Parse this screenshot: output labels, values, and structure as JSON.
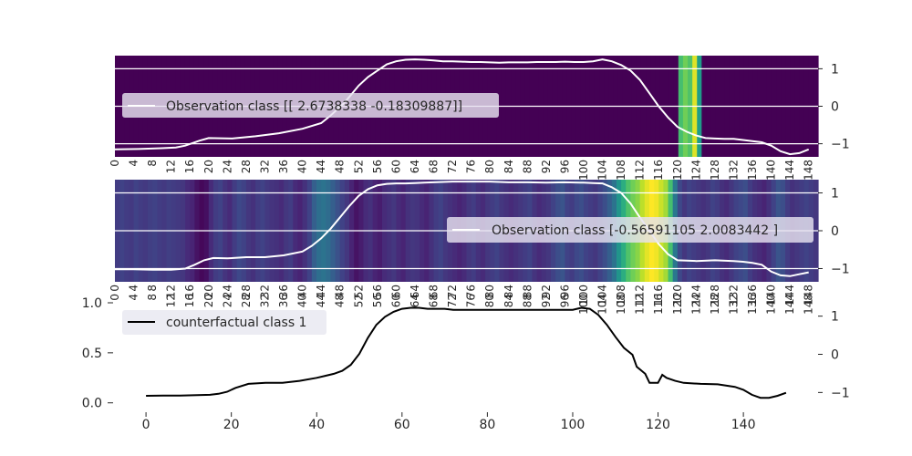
{
  "chart_data": [
    {
      "type": "heatmap",
      "title": "",
      "legend": "Observation class [[ 2.6738338  -0.18309887]]",
      "legend_position": "center-left",
      "x_range": [
        0,
        150
      ],
      "y_tick_labels": [
        "1",
        "0",
        "−1"
      ],
      "y_tick_values": [
        1,
        0,
        -1
      ],
      "ylim": [
        -1.35,
        1.35
      ],
      "x_tick_labels": [
        "0",
        "4",
        "8",
        "12",
        "16",
        "20",
        "24",
        "28",
        "32",
        "36",
        "40",
        "44",
        "48",
        "52",
        "56",
        "60",
        "64",
        "68",
        "72",
        "76",
        "80",
        "84",
        "88",
        "92",
        "96",
        "100",
        "104",
        "108",
        "112",
        "116",
        "120",
        "124",
        "128",
        "132",
        "136",
        "140",
        "144",
        "148"
      ],
      "heat_values": [
        0,
        0,
        0,
        0,
        0,
        0,
        0,
        0,
        0,
        0,
        0,
        0,
        0,
        0,
        0,
        0,
        0,
        0,
        0,
        0,
        0,
        0,
        0,
        0,
        0,
        0,
        0,
        0,
        0,
        0,
        0,
        0,
        0,
        0,
        0,
        0,
        0,
        0,
        0,
        0,
        0,
        0,
        0,
        0,
        0,
        0,
        0,
        0,
        0,
        0,
        0,
        0,
        0,
        0,
        0,
        0,
        0,
        0,
        0,
        0,
        0,
        0,
        0,
        0,
        0,
        0,
        0,
        0,
        0,
        0,
        0,
        0,
        0,
        0,
        0,
        0,
        0,
        0,
        0,
        0,
        0,
        0,
        0,
        0,
        0,
        0,
        0,
        0,
        0,
        0,
        0,
        0,
        0,
        0,
        0,
        0,
        0,
        0,
        0,
        0,
        0,
        0,
        0,
        0,
        0,
        0,
        0,
        0,
        0,
        0,
        0,
        0,
        0,
        0,
        0,
        0,
        0,
        0,
        0,
        0,
        0,
        0.7,
        0.78,
        0.72,
        0.95,
        0.55,
        0,
        0,
        0,
        0,
        0,
        0,
        0,
        0,
        0,
        0,
        0,
        0,
        0,
        0,
        0,
        0,
        0,
        0,
        0,
        0,
        0,
        0,
        0,
        0,
        0
      ],
      "line_series_ref": "series_obs1"
    },
    {
      "type": "heatmap",
      "title": "",
      "legend": "Observation class [-0.56591105  2.0083442 ]",
      "legend_position": "center-right",
      "x_range": [
        0,
        150
      ],
      "y_tick_labels": [
        "1",
        "0",
        "−1"
      ],
      "y_tick_values": [
        1,
        0,
        -1
      ],
      "ylim": [
        -1.35,
        1.35
      ],
      "x_tick_labels": [
        "0",
        "4",
        "8",
        "12",
        "16",
        "20",
        "24",
        "28",
        "32",
        "36",
        "40",
        "44",
        "48",
        "52",
        "56",
        "60",
        "64",
        "68",
        "72",
        "76",
        "80",
        "84",
        "88",
        "92",
        "96",
        "100",
        "104",
        "108",
        "112",
        "116",
        "120",
        "124",
        "128",
        "132",
        "136",
        "140",
        "144",
        "148"
      ],
      "heat_values": [
        0.18,
        0.2,
        0.18,
        0.17,
        0.2,
        0.18,
        0.17,
        0.19,
        0.2,
        0.18,
        0.17,
        0.19,
        0.18,
        0.17,
        0.16,
        0.12,
        0.1,
        0.05,
        0.02,
        0.04,
        0.12,
        0.18,
        0.2,
        0.15,
        0.12,
        0.18,
        0.22,
        0.2,
        0.16,
        0.14,
        0.18,
        0.2,
        0.17,
        0.15,
        0.14,
        0.12,
        0.16,
        0.18,
        0.12,
        0.1,
        0.14,
        0.2,
        0.3,
        0.36,
        0.38,
        0.35,
        0.3,
        0.25,
        0.2,
        0.16,
        0.1,
        0.05,
        0.08,
        0.12,
        0.14,
        0.1,
        0.08,
        0.12,
        0.14,
        0.16,
        0.12,
        0.1,
        0.14,
        0.16,
        0.15,
        0.12,
        0.1,
        0.14,
        0.18,
        0.2,
        0.16,
        0.14,
        0.12,
        0.1,
        0.12,
        0.16,
        0.18,
        0.14,
        0.12,
        0.16,
        0.18,
        0.2,
        0.16,
        0.14,
        0.12,
        0.14,
        0.16,
        0.18,
        0.2,
        0.15,
        0.12,
        0.14,
        0.16,
        0.2,
        0.24,
        0.26,
        0.2,
        0.18,
        0.22,
        0.24,
        0.2,
        0.18,
        0.16,
        0.2,
        0.24,
        0.3,
        0.38,
        0.52,
        0.62,
        0.72,
        0.78,
        0.82,
        0.9,
        0.96,
        1.0,
        0.98,
        0.92,
        0.86,
        0.7,
        0.4,
        0.22,
        0.16,
        0.2,
        0.18,
        0.16,
        0.14,
        0.16,
        0.2,
        0.18,
        0.14,
        0.12,
        0.16,
        0.2,
        0.22,
        0.24,
        0.18,
        0.14,
        0.12,
        0.1,
        0.14,
        0.2,
        0.26,
        0.24,
        0.18,
        0.14,
        0.16,
        0.18,
        0.2,
        0.18,
        0.16
      ],
      "line_series_ref": "series_obs2"
    },
    {
      "type": "line",
      "title": "",
      "legend": "counterfactual class 1",
      "legend_position": "top-left",
      "x_tick_labels": [
        "0",
        "20",
        "40",
        "60",
        "80",
        "100",
        "120",
        "140"
      ],
      "x_tick_values": [
        0,
        20,
        40,
        60,
        80,
        100,
        120,
        140
      ],
      "xlim": [
        -7.5,
        157.5
      ],
      "y_left_tick_labels": [
        "0.0",
        "0.5",
        "1.0"
      ],
      "y_left_tick_values": [
        0.0,
        0.5,
        1.0
      ],
      "y_left_lim": [
        -0.03,
        1.0
      ],
      "y_right_tick_labels": [
        "1",
        "0",
        "−1"
      ],
      "y_right_tick_values": [
        1,
        0,
        -1
      ],
      "ylim": [
        -1.35,
        1.35
      ],
      "upper_overlap_x_tick_labels": [
        "0",
        "4",
        "8",
        "12",
        "16",
        "20",
        "24",
        "28",
        "32",
        "36",
        "40",
        "44",
        "48",
        "52",
        "56",
        "60",
        "64",
        "68",
        "72",
        "76",
        "80",
        "84",
        "88",
        "92",
        "96",
        "100",
        "104",
        "108",
        "112",
        "116",
        "120",
        "124",
        "128",
        "132",
        "136",
        "140",
        "144",
        "148"
      ],
      "series_color": "#000000"
    }
  ],
  "series_obs1": {
    "x": [
      0,
      5,
      10,
      13,
      15,
      18,
      20,
      25,
      30,
      35,
      40,
      44,
      46,
      49,
      52,
      54,
      56,
      58,
      60,
      62,
      64,
      66,
      68,
      70,
      72,
      74,
      76,
      78,
      80,
      82,
      84,
      86,
      88,
      90,
      92,
      94,
      96,
      98,
      100,
      102,
      104,
      106,
      108,
      110,
      112,
      114,
      116,
      118,
      120,
      122,
      124,
      126,
      128,
      130,
      132,
      134,
      136,
      138,
      140,
      142,
      144,
      146,
      148
    ],
    "y": [
      -1.15,
      -1.14,
      -1.12,
      -1.1,
      -1.05,
      -0.92,
      -0.85,
      -0.86,
      -0.8,
      -0.72,
      -0.6,
      -0.45,
      -0.25,
      0.1,
      0.55,
      0.78,
      0.95,
      1.12,
      1.2,
      1.24,
      1.25,
      1.24,
      1.22,
      1.2,
      1.2,
      1.19,
      1.18,
      1.18,
      1.17,
      1.16,
      1.17,
      1.17,
      1.17,
      1.18,
      1.18,
      1.18,
      1.19,
      1.18,
      1.18,
      1.2,
      1.25,
      1.2,
      1.1,
      0.95,
      0.7,
      0.35,
      0.0,
      -0.3,
      -0.55,
      -0.68,
      -0.78,
      -0.85,
      -0.86,
      -0.87,
      -0.87,
      -0.9,
      -0.93,
      -0.96,
      -1.05,
      -1.2,
      -1.28,
      -1.25,
      -1.15
    ]
  },
  "series_obs2": {
    "x": [
      0,
      4,
      8,
      12,
      15,
      17,
      19,
      21,
      24,
      28,
      32,
      36,
      40,
      42,
      44,
      46,
      48,
      50,
      52,
      54,
      56,
      58,
      60,
      62,
      64,
      66,
      68,
      70,
      72,
      76,
      80,
      84,
      88,
      92,
      96,
      100,
      102,
      104,
      106,
      108,
      110,
      112,
      114,
      116,
      118,
      120,
      124,
      128,
      132,
      134,
      136,
      138,
      140,
      142,
      144,
      146,
      148
    ],
    "y": [
      -1.02,
      -1.02,
      -1.03,
      -1.03,
      -1.0,
      -0.9,
      -0.78,
      -0.72,
      -0.73,
      -0.7,
      -0.7,
      -0.65,
      -0.55,
      -0.4,
      -0.2,
      0.05,
      0.35,
      0.65,
      0.92,
      1.1,
      1.2,
      1.24,
      1.25,
      1.25,
      1.26,
      1.27,
      1.28,
      1.29,
      1.3,
      1.3,
      1.3,
      1.28,
      1.28,
      1.27,
      1.28,
      1.27,
      1.26,
      1.25,
      1.15,
      1.0,
      0.72,
      0.35,
      0.0,
      -0.35,
      -0.62,
      -0.78,
      -0.8,
      -0.78,
      -0.8,
      -0.82,
      -0.85,
      -0.9,
      -1.08,
      -1.18,
      -1.2,
      -1.15,
      -1.1
    ]
  },
  "series_cf": {
    "x": [
      0,
      4,
      8,
      12,
      15,
      17,
      19,
      21,
      24,
      28,
      32,
      36,
      40,
      42,
      44,
      46,
      48,
      50,
      52,
      54,
      56,
      58,
      60,
      62,
      64,
      66,
      68,
      70,
      72,
      76,
      80,
      84,
      88,
      92,
      96,
      100,
      102,
      104,
      106,
      108,
      110,
      112,
      114,
      115,
      117,
      118,
      120,
      121,
      122,
      124,
      126,
      130,
      134,
      138,
      140,
      142,
      144,
      146,
      148,
      150
    ],
    "y": [
      0.07,
      0.072,
      0.073,
      0.078,
      0.08,
      0.09,
      0.11,
      0.15,
      0.19,
      0.2,
      0.2,
      0.22,
      0.25,
      0.27,
      0.29,
      0.32,
      0.38,
      0.49,
      0.65,
      0.78,
      0.86,
      0.91,
      0.94,
      0.95,
      0.95,
      0.94,
      0.94,
      0.94,
      0.93,
      0.93,
      0.93,
      0.93,
      0.93,
      0.93,
      0.93,
      0.93,
      0.95,
      0.94,
      0.88,
      0.78,
      0.66,
      0.55,
      0.48,
      0.36,
      0.29,
      0.2,
      0.2,
      0.28,
      0.25,
      0.22,
      0.2,
      0.19,
      0.185,
      0.16,
      0.13,
      0.08,
      0.05,
      0.05,
      0.07,
      0.1
    ]
  }
}
